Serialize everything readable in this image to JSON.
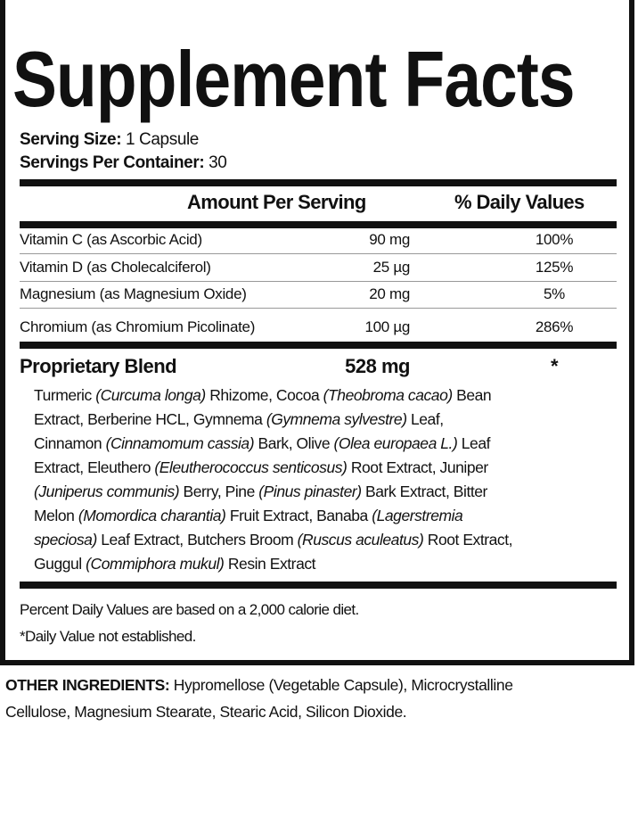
{
  "title": "Supplement Facts",
  "serving": {
    "size_label": "Serving Size:",
    "size_value": "1 Capsule",
    "per_container_label": "Servings Per Container:",
    "per_container_value": "30"
  },
  "headers": {
    "amount": "Amount Per Serving",
    "daily": "% Daily Values"
  },
  "nutrients": [
    {
      "name": "Vitamin C (as Ascorbic Acid)",
      "amount": "90 mg",
      "dv": "100%"
    },
    {
      "name": "Vitamin D (as Cholecalciferol)",
      "amount": "25 µg",
      "dv": "125%"
    },
    {
      "name": "Magnesium (as Magnesium Oxide)",
      "amount": "20 mg",
      "dv": "5%"
    },
    {
      "name": "Chromium (as Chromium Picolinate)",
      "amount": "100 µg",
      "dv": "286%"
    }
  ],
  "blend": {
    "name": "Proprietary Blend",
    "amount": "528 mg",
    "dv": "*"
  },
  "ingredient_lines": [
    [
      {
        "t": "Turmeric "
      },
      {
        "t": "(Curcuma longa)",
        "i": true
      },
      {
        "t": " Rhizome, Cocoa "
      },
      {
        "t": "(Theobroma cacao)",
        "i": true
      },
      {
        "t": " Bean"
      }
    ],
    [
      {
        "t": "Extract, Berberine HCL, Gymnema "
      },
      {
        "t": "(Gymnema sylvestre)",
        "i": true
      },
      {
        "t": " Leaf,"
      }
    ],
    [
      {
        "t": "Cinnamon "
      },
      {
        "t": "(Cinnamomum cassia)",
        "i": true
      },
      {
        "t": " Bark, Olive "
      },
      {
        "t": "(Olea europaea L.)",
        "i": true
      },
      {
        "t": " Leaf"
      }
    ],
    [
      {
        "t": "Extract, Eleuthero "
      },
      {
        "t": "(Eleutherococcus senticosus)",
        "i": true
      },
      {
        "t": " Root Extract, Juniper"
      }
    ],
    [
      {
        "t": "(Juniperus communis)",
        "i": true
      },
      {
        "t": " Berry, Pine "
      },
      {
        "t": "(Pinus pinaster)",
        "i": true
      },
      {
        "t": " Bark Extract, Bitter"
      }
    ],
    [
      {
        "t": "Melon "
      },
      {
        "t": "(Momordica charantia)",
        "i": true
      },
      {
        "t": " Fruit Extract, Banaba "
      },
      {
        "t": "(Lagerstremia",
        "i": true
      }
    ],
    [
      {
        "t": "speciosa)",
        "i": true
      },
      {
        "t": " Leaf Extract, Butchers Broom "
      },
      {
        "t": "(Ruscus aculeatus)",
        "i": true
      },
      {
        "t": " Root Extract,"
      }
    ],
    [
      {
        "t": "Guggul "
      },
      {
        "t": "(Commiphora mukul)",
        "i": true
      },
      {
        "t": " Resin Extract"
      }
    ]
  ],
  "footnotes": [
    "Percent Daily Values are based on a 2,000 calorie diet.",
    "*Daily Value not established."
  ],
  "other_ingredients": {
    "label": "OTHER INGREDIENTS:",
    "line1": " Hypromellose (Vegetable Capsule), Microcrystalline",
    "line2": "Cellulose, Magnesium Stearate, Stearic Acid, Silicon Dioxide."
  }
}
